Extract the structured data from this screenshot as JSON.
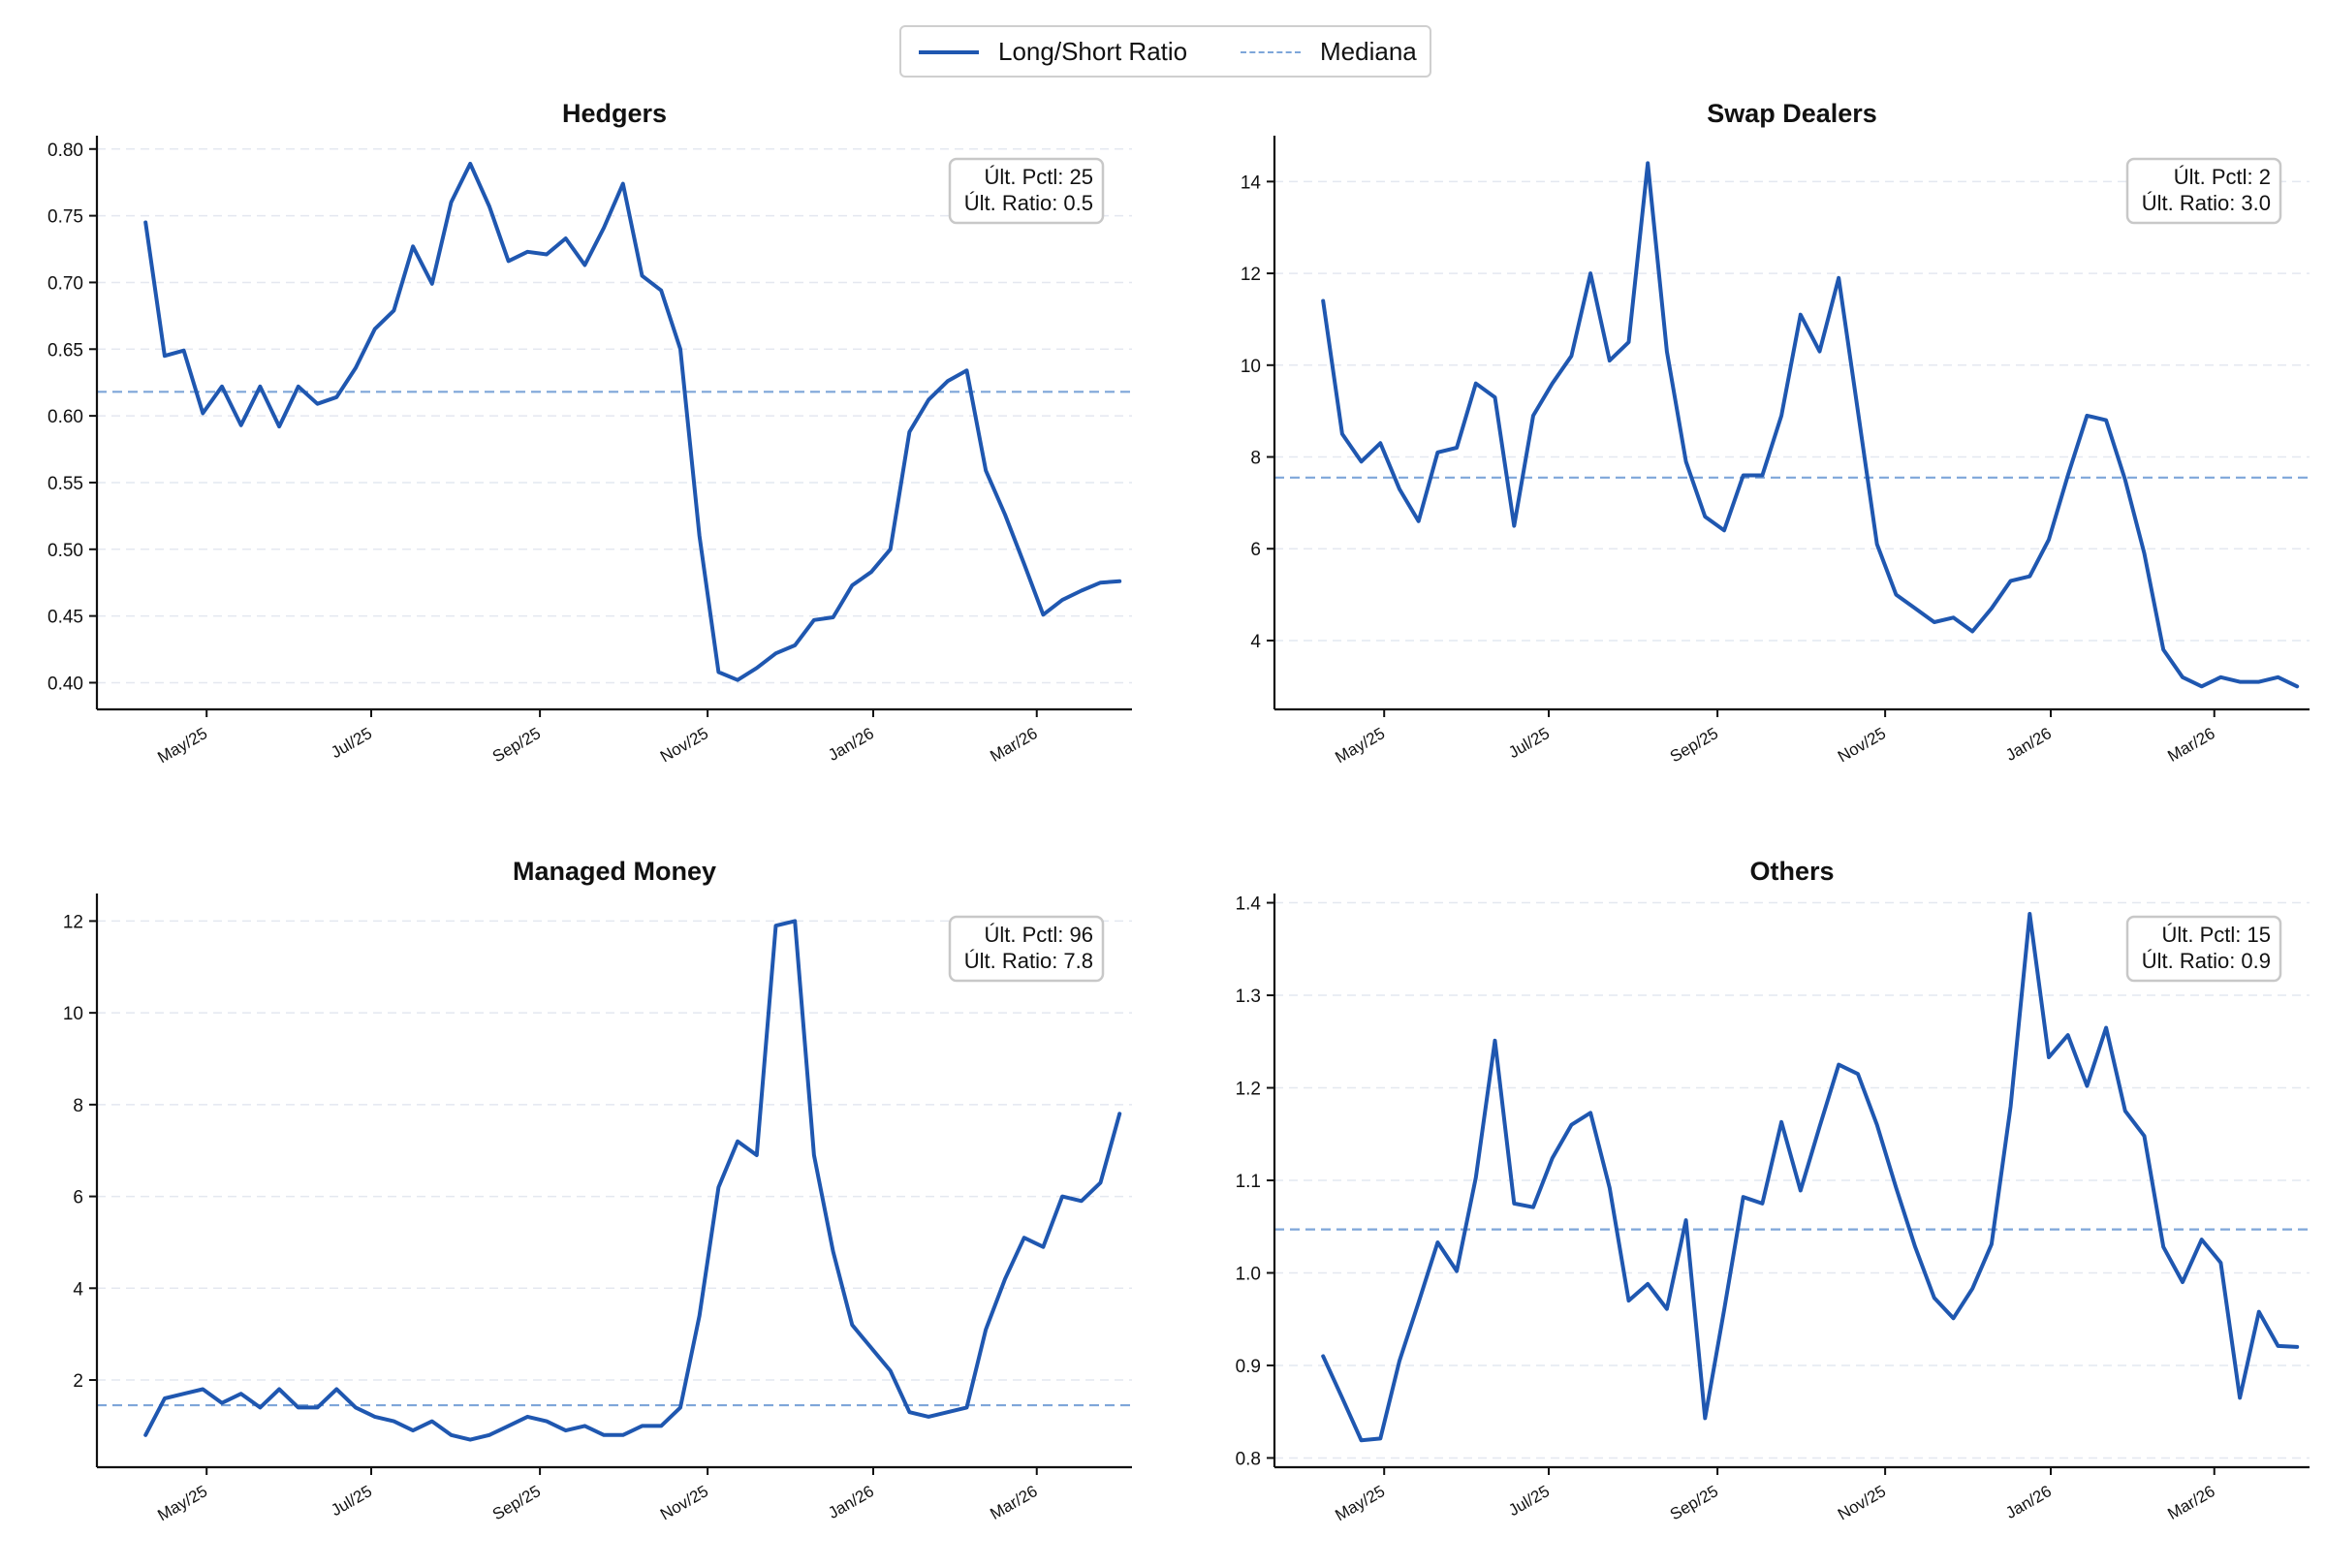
{
  "legend": {
    "ratio_label": "Long/Short Ratio",
    "median_label": "Mediana",
    "ratio_color": "#1f57b0",
    "median_color": "#7ea6d9"
  },
  "chart_data": [
    {
      "type": "line",
      "title": "Hedgers",
      "xlabel": "",
      "ylabel": "",
      "x_ticks": [
        "May/25",
        "Jul/25",
        "Sep/25",
        "Nov/25",
        "Jan/26",
        "Mar/26"
      ],
      "ylim": [
        0.38,
        0.81
      ],
      "y_ticks": [
        0.4,
        0.45,
        0.5,
        0.55,
        0.6,
        0.65,
        0.7,
        0.75,
        0.8
      ],
      "grid": true,
      "median": 0.618,
      "annotation": [
        "Últ. Pctl: 25",
        "Últ. Ratio: 0.5"
      ],
      "series": [
        {
          "name": "Long/Short Ratio",
          "values": [
            0.745,
            0.645,
            0.649,
            0.602,
            0.622,
            0.593,
            0.622,
            0.592,
            0.622,
            0.609,
            0.614,
            0.636,
            0.665,
            0.679,
            0.727,
            0.699,
            0.76,
            0.789,
            0.757,
            0.716,
            0.723,
            0.721,
            0.733,
            0.713,
            0.741,
            0.774,
            0.705,
            0.694,
            0.65,
            0.51,
            0.408,
            0.402,
            0.411,
            0.422,
            0.428,
            0.447,
            0.449,
            0.473,
            0.483,
            0.5,
            0.588,
            0.612,
            0.626,
            0.634,
            0.559,
            0.526,
            0.489,
            0.451,
            0.462,
            0.469,
            0.475,
            0.476
          ]
        }
      ]
    },
    {
      "type": "line",
      "title": "Swap Dealers",
      "xlabel": "",
      "ylabel": "",
      "x_ticks": [
        "May/25",
        "Jul/25",
        "Sep/25",
        "Nov/25",
        "Jan/26",
        "Mar/26"
      ],
      "ylim": [
        2.5,
        15.0
      ],
      "y_ticks": [
        4,
        6,
        8,
        10,
        12,
        14
      ],
      "grid": true,
      "median": 7.55,
      "annotation": [
        "Últ. Pctl: 2",
        "Últ. Ratio: 3.0"
      ],
      "series": [
        {
          "name": "Long/Short Ratio",
          "values": [
            11.4,
            8.5,
            7.9,
            8.3,
            7.3,
            6.6,
            8.1,
            8.2,
            9.6,
            9.3,
            6.5,
            8.9,
            9.6,
            10.2,
            12.0,
            10.1,
            10.5,
            14.4,
            10.3,
            7.9,
            6.7,
            6.4,
            7.6,
            7.6,
            8.9,
            11.1,
            10.3,
            11.9,
            9.0,
            6.1,
            5.0,
            4.7,
            4.4,
            4.5,
            4.2,
            4.7,
            5.3,
            5.4,
            6.2,
            7.6,
            8.9,
            8.8,
            7.5,
            5.9,
            3.8,
            3.2,
            3.0,
            3.2,
            3.1,
            3.1,
            3.2,
            3.0
          ]
        }
      ]
    },
    {
      "type": "line",
      "title": "Managed Money",
      "xlabel": "",
      "ylabel": "",
      "x_ticks": [
        "May/25",
        "Jul/25",
        "Sep/25",
        "Nov/25",
        "Jan/26",
        "Mar/26"
      ],
      "ylim": [
        0.1,
        12.6
      ],
      "y_ticks": [
        2,
        4,
        6,
        8,
        10,
        12
      ],
      "grid": true,
      "median": 1.45,
      "annotation": [
        "Últ. Pctl: 96",
        "Últ. Ratio: 7.8"
      ],
      "series": [
        {
          "name": "Long/Short Ratio",
          "values": [
            0.8,
            1.6,
            1.7,
            1.8,
            1.5,
            1.7,
            1.4,
            1.8,
            1.4,
            1.4,
            1.8,
            1.4,
            1.2,
            1.1,
            0.9,
            1.1,
            0.8,
            0.7,
            0.8,
            1.0,
            1.2,
            1.1,
            0.9,
            1.0,
            0.8,
            0.8,
            1.0,
            1.0,
            1.4,
            3.4,
            6.2,
            7.2,
            6.9,
            11.9,
            12.0,
            6.9,
            4.8,
            3.2,
            2.7,
            2.2,
            1.3,
            1.2,
            1.3,
            1.4,
            3.1,
            4.2,
            5.1,
            4.9,
            6.0,
            5.9,
            6.3,
            7.8
          ]
        }
      ]
    },
    {
      "type": "line",
      "title": "Others",
      "xlabel": "",
      "ylabel": "",
      "x_ticks": [
        "May/25",
        "Jul/25",
        "Sep/25",
        "Nov/25",
        "Jan/26",
        "Mar/26"
      ],
      "ylim": [
        0.79,
        1.41
      ],
      "y_ticks": [
        0.8,
        0.9,
        1.0,
        1.1,
        1.2,
        1.3,
        1.4
      ],
      "grid": true,
      "median": 1.047,
      "annotation": [
        "Últ. Pctl: 15",
        "Últ. Ratio: 0.9"
      ],
      "series": [
        {
          "name": "Long/Short Ratio",
          "values": [
            0.91,
            0.865,
            0.819,
            0.821,
            0.905,
            0.968,
            1.033,
            1.002,
            1.103,
            1.251,
            1.075,
            1.071,
            1.124,
            1.16,
            1.173,
            1.092,
            0.97,
            0.988,
            0.961,
            1.057,
            0.843,
            0.96,
            1.082,
            1.075,
            1.163,
            1.089,
            1.158,
            1.225,
            1.215,
            1.16,
            1.092,
            1.028,
            0.973,
            0.951,
            0.983,
            1.031,
            1.18,
            1.388,
            1.233,
            1.257,
            1.202,
            1.265,
            1.175,
            1.148,
            1.028,
            0.99,
            1.036,
            1.011,
            0.865,
            0.958,
            0.921,
            0.92
          ]
        }
      ]
    }
  ]
}
